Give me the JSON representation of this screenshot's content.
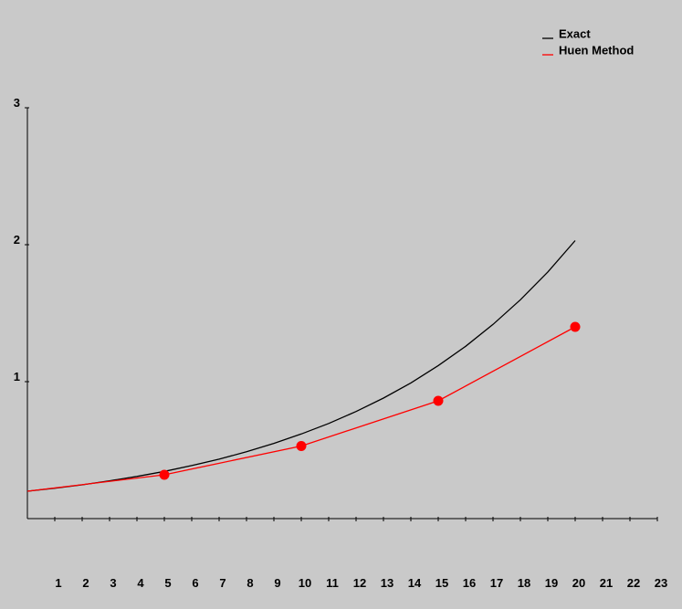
{
  "chart_data": {
    "type": "line",
    "title": "",
    "xlabel": "",
    "ylabel": "",
    "xlim": [
      0,
      23
    ],
    "ylim": [
      0,
      3
    ],
    "x_ticks": [
      "1",
      "2",
      "3",
      "4",
      "5",
      "6",
      "7",
      "8",
      "9",
      "10",
      "11",
      "12",
      "13",
      "14",
      "15",
      "16",
      "17",
      "18",
      "19",
      "20",
      "21",
      "22",
      "23"
    ],
    "y_ticks": [
      "1",
      "2",
      "3"
    ],
    "grid": false,
    "legend_position": "top-right",
    "series": [
      {
        "name": "Exact",
        "color": "#000000",
        "style": "line",
        "x": [
          0,
          1,
          2,
          3,
          4,
          5,
          6,
          7,
          8,
          9,
          10,
          11,
          12,
          13,
          14,
          15,
          16,
          17,
          18,
          19,
          20
        ],
        "y": [
          0.2,
          0.222,
          0.247,
          0.276,
          0.308,
          0.345,
          0.387,
          0.434,
          0.488,
          0.549,
          0.618,
          0.695,
          0.782,
          0.88,
          0.991,
          1.117,
          1.258,
          1.418,
          1.598,
          1.801,
          2.03
        ]
      },
      {
        "name": "Huen Method",
        "color": "#ff0000",
        "style": "line-markers",
        "x": [
          0,
          5,
          10,
          15,
          20
        ],
        "y": [
          0.2,
          0.32,
          0.53,
          0.86,
          1.4
        ]
      }
    ]
  }
}
